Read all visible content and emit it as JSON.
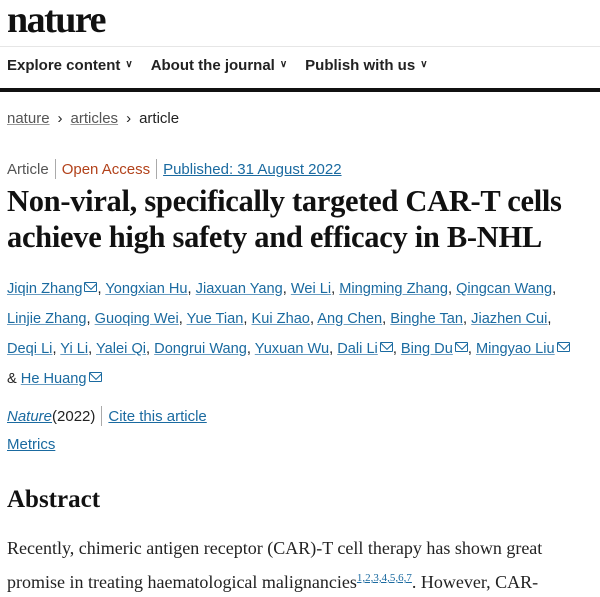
{
  "site": {
    "logo": "nature"
  },
  "nav": {
    "items": [
      {
        "label": "Explore content"
      },
      {
        "label": "About the journal"
      },
      {
        "label": "Publish with us"
      }
    ],
    "chevron": "⌄"
  },
  "breadcrumb": {
    "items": [
      "nature",
      "articles",
      "article"
    ],
    "separator": "›"
  },
  "meta": {
    "type": "Article",
    "access": "Open Access",
    "published": "Published: 31 August 2022"
  },
  "title": {
    "line1": "Non-viral, specifically targeted CAR-T cells",
    "line2": "achieve high safety and efficacy in B-NHL"
  },
  "authors": [
    {
      "name": "Jiqin Zhang",
      "mail": true
    },
    {
      "name": "Yongxian Hu"
    },
    {
      "name": "Jiaxuan Yang"
    },
    {
      "name": "Wei Li"
    },
    {
      "name": "Mingming Zhang"
    },
    {
      "name": "Qingcan Wang"
    },
    {
      "name": "Linjie Zhang"
    },
    {
      "name": "Guoqing Wei"
    },
    {
      "name": "Yue Tian"
    },
    {
      "name": "Kui Zhao"
    },
    {
      "name": "Ang Chen"
    },
    {
      "name": "Binghe Tan"
    },
    {
      "name": "Jiazhen Cui"
    },
    {
      "name": "Deqi Li"
    },
    {
      "name": "Yi Li"
    },
    {
      "name": "Yalei Qi"
    },
    {
      "name": "Dongrui Wang"
    },
    {
      "name": "Yuxuan Wu"
    },
    {
      "name": "Dali Li",
      "mail": true
    },
    {
      "name": "Bing Du",
      "mail": true
    },
    {
      "name": "Mingyao Liu",
      "mail": true
    },
    {
      "name": "He Huang",
      "mail": true
    }
  ],
  "authors_conj": "&",
  "citation": {
    "journal": "Nature",
    "year": " (2022)",
    "cite_link": "Cite this article"
  },
  "metrics": "Metrics",
  "abstract": {
    "heading": "Abstract",
    "line1": "Recently, chimeric antigen receptor (CAR)-T cell therapy has shown great",
    "line2_pre": "promise in treating haematological malignancies",
    "refs": "1,2,3,4,5,6,7",
    "line2_post": ". However, CAR-"
  },
  "colors": {
    "link": "#1a6aa0",
    "open_access": "#b2421b"
  }
}
